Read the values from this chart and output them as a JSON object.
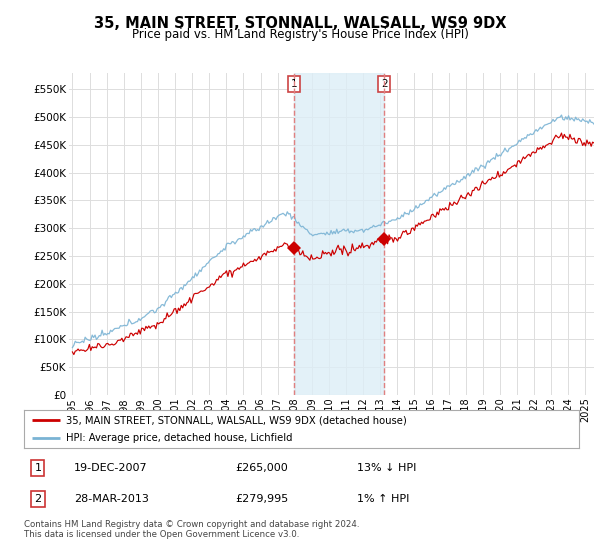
{
  "title": "35, MAIN STREET, STONNALL, WALSALL, WS9 9DX",
  "subtitle": "Price paid vs. HM Land Registry's House Price Index (HPI)",
  "ylabel_ticks": [
    "£0",
    "£50K",
    "£100K",
    "£150K",
    "£200K",
    "£250K",
    "£300K",
    "£350K",
    "£400K",
    "£450K",
    "£500K",
    "£550K"
  ],
  "ytick_values": [
    0,
    50000,
    100000,
    150000,
    200000,
    250000,
    300000,
    350000,
    400000,
    450000,
    500000,
    550000
  ],
  "ylim": [
    0,
    580000
  ],
  "xlim_start": 1995.0,
  "xlim_end": 2025.5,
  "hpi_line_color": "#7ab3d4",
  "price_line_color": "#cc0000",
  "marker_color": "#cc0000",
  "shade_color": "#ddeef7",
  "vline_color": "#e08080",
  "background_color": "#ffffff",
  "grid_color": "#dddddd",
  "transaction1": {
    "date_label": "19-DEC-2007",
    "price": 265000,
    "x_year": 2007.97
  },
  "transaction2": {
    "date_label": "28-MAR-2013",
    "price": 279995,
    "x_year": 2013.24
  },
  "legend_label_red": "35, MAIN STREET, STONNALL, WALSALL, WS9 9DX (detached house)",
  "legend_label_blue": "HPI: Average price, detached house, Lichfield",
  "footer": "Contains HM Land Registry data © Crown copyright and database right 2024.\nThis data is licensed under the Open Government Licence v3.0.",
  "table_rows": [
    {
      "num": "1",
      "date": "19-DEC-2007",
      "price": "£265,000",
      "pct": "13% ↓ HPI"
    },
    {
      "num": "2",
      "date": "28-MAR-2013",
      "price": "£279,995",
      "pct": "1% ↑ HPI"
    }
  ]
}
